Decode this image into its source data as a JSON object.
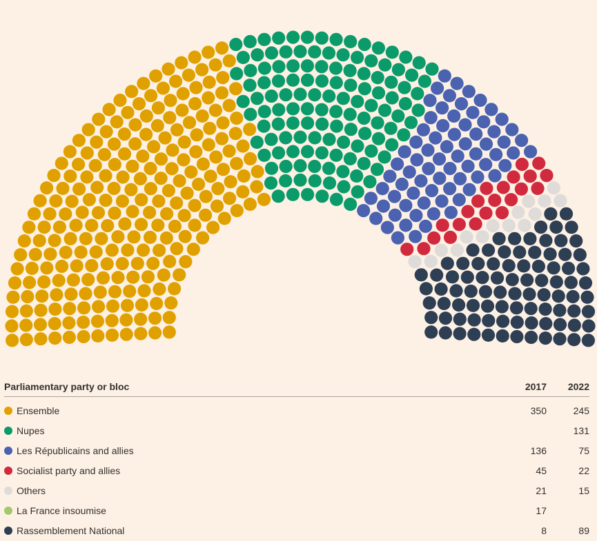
{
  "chart_data": {
    "type": "parliament",
    "total_seats": 577,
    "table_headers": {
      "party": "Parliamentary party or bloc",
      "y2017": "2017",
      "y2022": "2022"
    },
    "parties": [
      {
        "name": "Ensemble",
        "color": "#e0a100",
        "seats_2017": "350",
        "seats_2022": "245"
      },
      {
        "name": "Nupes",
        "color": "#0b9a6a",
        "seats_2017": "",
        "seats_2022": "131"
      },
      {
        "name": "Les Républicains and allies",
        "color": "#4a62b0",
        "seats_2017": "136",
        "seats_2022": "75"
      },
      {
        "name": "Socialist party and allies",
        "color": "#d12a3e",
        "seats_2017": "45",
        "seats_2022": "22"
      },
      {
        "name": "Others",
        "color": "#dedbd9",
        "seats_2017": "21",
        "seats_2022": "15"
      },
      {
        "name": "La France insoumise",
        "color": "#a3c96b",
        "seats_2017": "17",
        "seats_2022": ""
      },
      {
        "name": "Rassemblement National",
        "color": "#2e3e53",
        "seats_2017": "8",
        "seats_2022": "89"
      }
    ],
    "depicted_year": "2022"
  }
}
